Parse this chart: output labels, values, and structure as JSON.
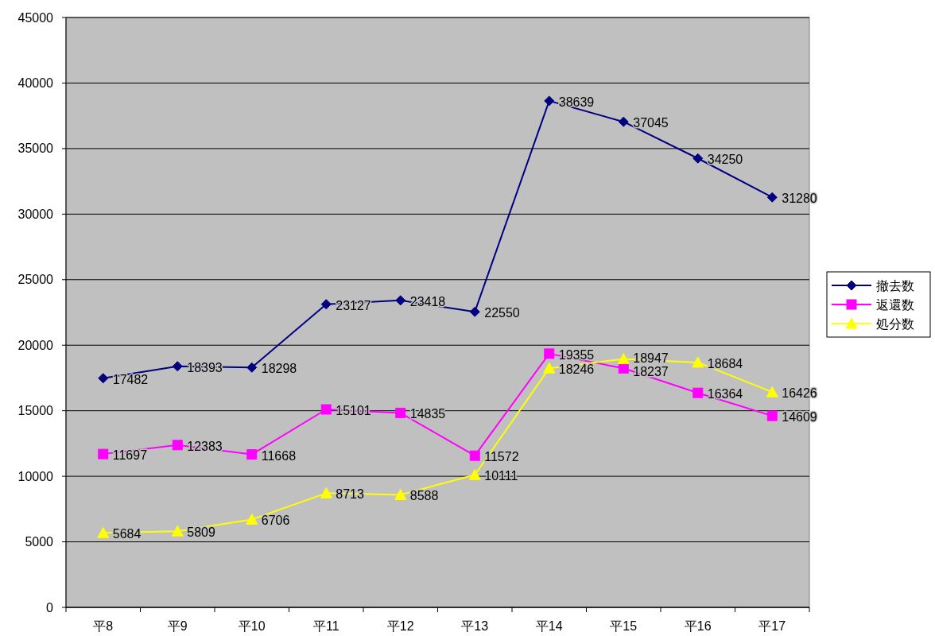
{
  "chart_data": {
    "type": "line",
    "categories": [
      "平8",
      "平9",
      "平10",
      "平11",
      "平12",
      "平13",
      "平14",
      "平15",
      "平16",
      "平17"
    ],
    "series": [
      {
        "name": "撤去数",
        "color": "#000080",
        "marker": "diamond",
        "values": [
          17482,
          18393,
          18298,
          23127,
          23418,
          22550,
          38639,
          37045,
          34250,
          31280
        ]
      },
      {
        "name": "返還数",
        "color": "#ff00ff",
        "marker": "square",
        "values": [
          11697,
          12383,
          11668,
          15101,
          14835,
          11572,
          19355,
          18237,
          16364,
          14609
        ]
      },
      {
        "name": "処分数",
        "color": "#ffff00",
        "marker": "triangle",
        "values": [
          5684,
          5809,
          6706,
          8713,
          8588,
          10111,
          18246,
          18947,
          18684,
          16426
        ]
      }
    ],
    "ylim": [
      0,
      45000
    ],
    "yticks": [
      0,
      5000,
      10000,
      15000,
      20000,
      25000,
      30000,
      35000,
      40000,
      45000
    ],
    "grid": "y",
    "legend": "right",
    "data_labels": true
  }
}
